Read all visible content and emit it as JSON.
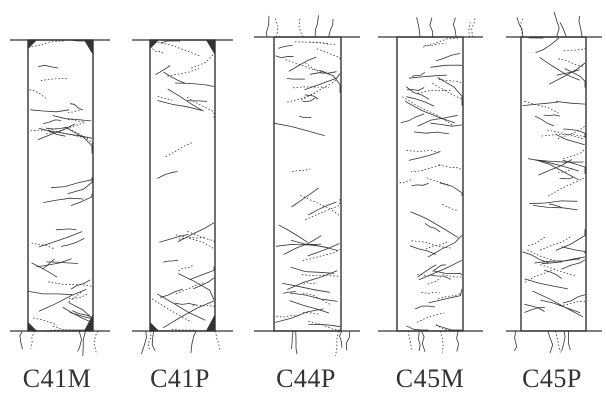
{
  "specimens": [
    {
      "id": "C41M",
      "label": "C41M"
    },
    {
      "id": "C41P",
      "label": "C41P"
    },
    {
      "id": "C44P",
      "label": "C44P"
    },
    {
      "id": "C45M",
      "label": "C45M"
    },
    {
      "id": "C45P",
      "label": "C45P"
    }
  ],
  "colors": {
    "ink": "#333333",
    "background": "#ffffff"
  }
}
